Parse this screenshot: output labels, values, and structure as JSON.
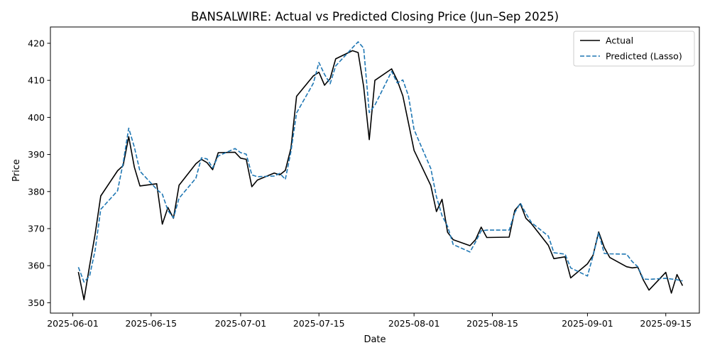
{
  "chart_data": {
    "type": "line",
    "title": "BANSALWIRE: Actual vs Predicted Closing Price (Jun–Sep 2025)",
    "xlabel": "Date",
    "ylabel": "Price",
    "x_tick_labels": [
      "2025-06-01",
      "2025-06-15",
      "2025-07-01",
      "2025-07-15",
      "2025-08-01",
      "2025-08-15",
      "2025-09-01",
      "2025-09-15"
    ],
    "x_tick_dates": [
      "2025-06-01",
      "2025-06-15",
      "2025-07-01",
      "2025-07-15",
      "2025-08-01",
      "2025-08-15",
      "2025-09-01",
      "2025-09-15"
    ],
    "y_ticks": [
      350,
      360,
      370,
      380,
      390,
      400,
      410,
      420
    ],
    "xlim": [
      "2025-05-28",
      "2025-09-21"
    ],
    "ylim": [
      347.2,
      424.4
    ],
    "grid": false,
    "legend_position": "top-right",
    "x": [
      "2025-06-02",
      "2025-06-03",
      "2025-06-04",
      "2025-06-05",
      "2025-06-06",
      "2025-06-09",
      "2025-06-10",
      "2025-06-11",
      "2025-06-12",
      "2025-06-13",
      "2025-06-16",
      "2025-06-17",
      "2025-06-18",
      "2025-06-19",
      "2025-06-20",
      "2025-06-23",
      "2025-06-24",
      "2025-06-25",
      "2025-06-26",
      "2025-06-27",
      "2025-06-30",
      "2025-07-01",
      "2025-07-02",
      "2025-07-03",
      "2025-07-04",
      "2025-07-07",
      "2025-07-08",
      "2025-07-09",
      "2025-07-10",
      "2025-07-11",
      "2025-07-14",
      "2025-07-15",
      "2025-07-16",
      "2025-07-17",
      "2025-07-18",
      "2025-07-21",
      "2025-07-22",
      "2025-07-23",
      "2025-07-24",
      "2025-07-25",
      "2025-07-28",
      "2025-07-29",
      "2025-07-30",
      "2025-07-31",
      "2025-08-01",
      "2025-08-04",
      "2025-08-05",
      "2025-08-06",
      "2025-08-07",
      "2025-08-08",
      "2025-08-11",
      "2025-08-12",
      "2025-08-13",
      "2025-08-14",
      "2025-08-18",
      "2025-08-19",
      "2025-08-20",
      "2025-08-21",
      "2025-08-22",
      "2025-08-25",
      "2025-08-26",
      "2025-08-28",
      "2025-08-29",
      "2025-09-01",
      "2025-09-02",
      "2025-09-03",
      "2025-09-04",
      "2025-09-05",
      "2025-09-08",
      "2025-09-09",
      "2025-09-10",
      "2025-09-11",
      "2025-09-12",
      "2025-09-15",
      "2025-09-16",
      "2025-09-17",
      "2025-09-18"
    ],
    "series": [
      {
        "name": "Actual",
        "color": "#000000",
        "dashed": false,
        "values": [
          358.3,
          350.8,
          360.0,
          368.5,
          378.8,
          385.6,
          387.0,
          394.8,
          386.6,
          381.5,
          382.1,
          371.2,
          375.7,
          372.8,
          381.7,
          387.5,
          388.7,
          387.8,
          385.9,
          390.5,
          390.6,
          389.0,
          388.7,
          381.3,
          383.1,
          385.0,
          384.5,
          385.7,
          391.7,
          405.7,
          411.2,
          412.2,
          408.7,
          410.5,
          415.8,
          418.0,
          417.5,
          408.3,
          394.0,
          410.0,
          413.1,
          410.0,
          405.8,
          398.5,
          391.1,
          381.6,
          374.6,
          377.9,
          369.0,
          367.0,
          365.4,
          367.0,
          370.4,
          367.6,
          367.7,
          374.9,
          376.7,
          372.8,
          371.3,
          365.5,
          361.9,
          362.4,
          356.7,
          360.5,
          362.8,
          369.1,
          364.9,
          362.2,
          359.7,
          359.4,
          359.6,
          356.1,
          353.4,
          358.2,
          352.6,
          357.6,
          354.6
        ]
      },
      {
        "name": "Predicted (Lasso)",
        "color": "#1f77b4",
        "dashed": true,
        "values": [
          359.6,
          355.6,
          357.2,
          364.2,
          375.2,
          380.2,
          387.7,
          397.1,
          392.0,
          385.5,
          380.6,
          379.3,
          374.9,
          372.9,
          378.2,
          383.6,
          389.1,
          388.8,
          386.4,
          389.6,
          391.6,
          390.5,
          390.1,
          384.5,
          384.0,
          384.2,
          384.9,
          383.3,
          390.8,
          401.2,
          409.2,
          414.8,
          411.6,
          409.1,
          413.9,
          418.8,
          420.4,
          418.7,
          401.3,
          403.3,
          412.4,
          409.3,
          410.1,
          405.8,
          396.7,
          386.2,
          378.6,
          373.5,
          370.6,
          365.7,
          363.7,
          366.4,
          369.4,
          369.6,
          369.6,
          374.3,
          376.9,
          374.1,
          371.6,
          368.0,
          363.5,
          363.1,
          359.4,
          357.2,
          362.7,
          368.8,
          363.3,
          363.2,
          363.1,
          361.1,
          359.7,
          356.4,
          356.3,
          356.6,
          356.4,
          356.2,
          355.9
        ]
      }
    ]
  }
}
